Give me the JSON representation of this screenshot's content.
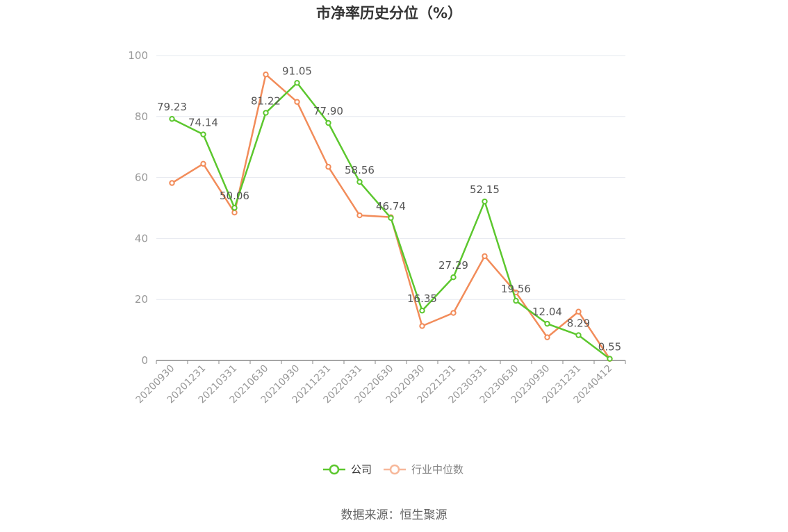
{
  "chart_data": {
    "type": "line",
    "title": "市净率历史分位（%）",
    "source": "数据来源：恒生聚源",
    "ylim": [
      0,
      100
    ],
    "yticks": [
      0,
      20,
      40,
      60,
      80,
      100
    ],
    "grid": true,
    "legend_position": "bottom",
    "categories": [
      "20200930",
      "20201231",
      "20210331",
      "20210630",
      "20210930",
      "20211231",
      "20220331",
      "20220630",
      "20220930",
      "20221231",
      "20230331",
      "20230630",
      "20230930",
      "20231231",
      "20240412"
    ],
    "series": [
      {
        "name": "公司",
        "color": "#5cc72e",
        "show_labels": true,
        "values": [
          79.23,
          74.14,
          50.06,
          81.22,
          91.05,
          77.9,
          58.56,
          46.74,
          16.35,
          27.29,
          52.15,
          19.56,
          12.04,
          8.29,
          0.55
        ],
        "labels": [
          "79.23",
          "74.14",
          "50.06",
          "81.22",
          "91.05",
          "77.90",
          "58.56",
          "46.74",
          "16.35",
          "27.29",
          "52.15",
          "19.56",
          "12.04",
          "8.29",
          "0.55"
        ]
      },
      {
        "name": "行业中位数",
        "color": "#f28c5a",
        "legend_color": "#f7b89a",
        "show_labels": false,
        "values": [
          58.2,
          64.5,
          48.5,
          93.8,
          84.8,
          63.5,
          47.6,
          47.0,
          11.3,
          15.6,
          34.2,
          22.3,
          7.6,
          16.0,
          0.5
        ]
      }
    ]
  }
}
